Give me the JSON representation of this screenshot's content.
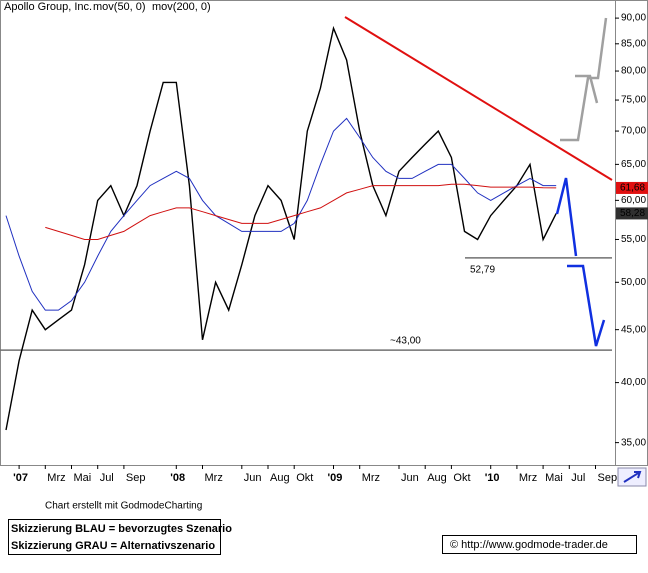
{
  "chart_data": {
    "type": "line",
    "title": "Apollo Group, Inc.",
    "indicators": [
      {
        "label": "mov(50, 0)",
        "color": "#e0c000"
      },
      {
        "label": "mov(200, 0)",
        "color": "#e0c000"
      }
    ],
    "categories": [
      null,
      "'07",
      null,
      "Mrz",
      null,
      "Mai",
      null,
      "Jul",
      null,
      "Sep",
      null,
      null,
      null,
      "'08",
      null,
      "Mrz",
      null,
      null,
      "Jun",
      null,
      "Aug",
      null,
      "Okt",
      null,
      null,
      "'09",
      null,
      "Mrz",
      null,
      null,
      "Jun",
      null,
      "Aug",
      null,
      "Okt",
      null,
      null,
      "'10",
      null,
      "Mrz",
      null,
      "Mai",
      null,
      "Jul",
      null,
      "Sep"
    ],
    "series": [
      {
        "name": "Apollo Group, Inc.",
        "color": "#000000",
        "width": 1.4,
        "values": [
          36,
          42,
          47,
          45,
          46,
          47,
          52,
          60,
          62,
          58,
          62,
          70,
          78,
          78,
          62,
          44,
          50,
          47,
          52,
          58,
          62,
          60,
          55,
          70,
          77,
          88,
          82,
          70,
          62,
          58,
          64,
          66,
          68,
          70,
          66,
          56,
          55,
          58,
          60,
          62,
          65,
          55,
          58.28,
          null,
          null,
          null
        ]
      },
      {
        "name": "mov(50, 0)",
        "color": "#2030c0",
        "width": 1,
        "values": [
          58,
          53,
          49,
          47,
          47,
          48,
          50,
          53,
          56,
          58,
          60,
          62,
          63,
          64,
          63,
          60,
          58,
          57,
          56,
          56,
          56,
          56,
          57,
          60,
          65,
          70,
          72,
          69,
          66,
          64,
          63,
          63,
          64,
          65,
          65,
          63,
          61,
          60,
          61,
          62,
          63,
          62,
          62,
          null,
          null,
          null
        ]
      },
      {
        "name": "mov(200, 0)",
        "color": "#d01010",
        "width": 1,
        "values": [
          null,
          null,
          null,
          56.5,
          56,
          55.5,
          55,
          55,
          55.5,
          56,
          57,
          58,
          58.5,
          59,
          59,
          58.5,
          58,
          57.5,
          57,
          57,
          57,
          57.5,
          58,
          58.5,
          59,
          60,
          61,
          61.5,
          62,
          62,
          62,
          62,
          62,
          62,
          62.2,
          62.2,
          62,
          61.8,
          61.8,
          61.8,
          61.8,
          61.7,
          61.68,
          null,
          null,
          null
        ]
      }
    ],
    "ylim": [
      33.3,
      93.7
    ],
    "log_scale": true,
    "yticks": [
      {
        "value": 35,
        "label": "35,00"
      },
      {
        "value": 40,
        "label": "40,00"
      },
      {
        "value": 45,
        "label": "45,00"
      },
      {
        "value": 50,
        "label": "50,00"
      },
      {
        "value": 55,
        "label": "55,00"
      },
      {
        "value": 60,
        "label": "60,00"
      },
      {
        "value": 65,
        "label": "65,00"
      },
      {
        "value": 70,
        "label": "70,00"
      },
      {
        "value": 75,
        "label": "75,00"
      },
      {
        "value": 80,
        "label": "80,00"
      },
      {
        "value": 85,
        "label": "85,00"
      },
      {
        "value": 90,
        "label": "90,00"
      }
    ],
    "price_tags": [
      {
        "value": 61.68,
        "label": "61,68",
        "color": "#e01010"
      },
      {
        "value": 58.28,
        "label": "58,28",
        "color": "#303030"
      }
    ],
    "support_lines": [
      {
        "value": 52.79,
        "label": "52,79"
      },
      {
        "value": 43,
        "label": "~43,00"
      }
    ],
    "footer": {
      "credit": "Chart erstellt mit GodmodeCharting",
      "legend_blue": "Skizzierung BLAU = bevorzugtes Szenario",
      "legend_grey": "Skizzierung GRAU = Alternativszenario",
      "url": "© http://www.godmode-trader.de"
    }
  }
}
